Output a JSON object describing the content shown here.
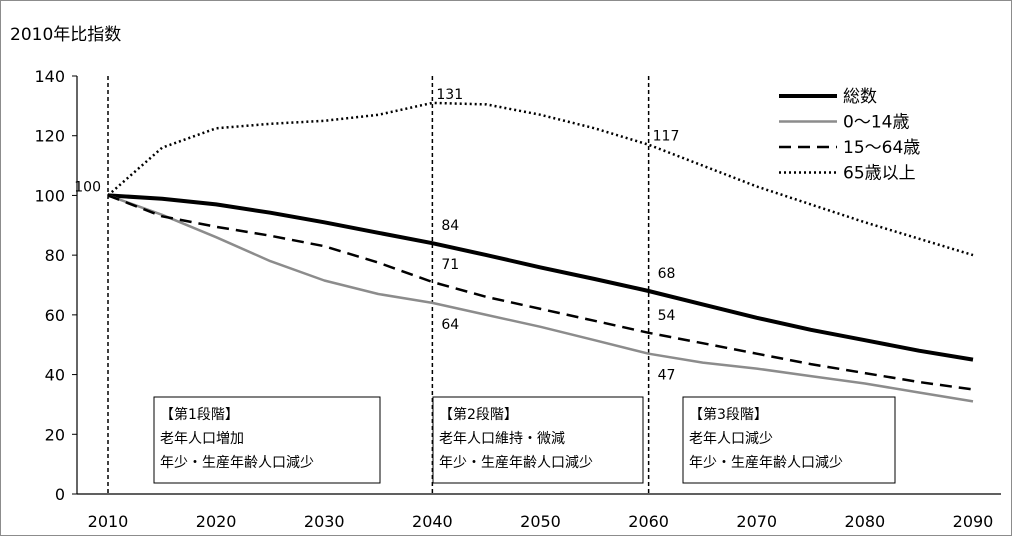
{
  "chart_data": {
    "type": "line",
    "ylabel": "2010年比指数",
    "xlabel": "",
    "title": "",
    "ylim": [
      0,
      140
    ],
    "xlim": [
      2010,
      2090
    ],
    "yticks": [
      0,
      20,
      40,
      60,
      80,
      100,
      120,
      140
    ],
    "xticks": [
      2010,
      2020,
      2030,
      2040,
      2050,
      2060,
      2070,
      2080,
      2090
    ],
    "grid": false,
    "legend_position": "top-right",
    "series": [
      {
        "name": "総数",
        "style": "solid",
        "color": "#000000",
        "x": [
          2010,
          2015,
          2020,
          2025,
          2030,
          2035,
          2040,
          2045,
          2050,
          2055,
          2060,
          2065,
          2070,
          2075,
          2080,
          2085,
          2090
        ],
        "values": [
          100,
          98.9,
          97,
          94.2,
          91,
          87.5,
          84,
          80,
          75.9,
          72,
          68,
          63.5,
          59,
          55,
          51.5,
          48,
          45
        ]
      },
      {
        "name": "0〜14歳",
        "style": "solid",
        "color": "#8c8c8c",
        "x": [
          2010,
          2015,
          2020,
          2025,
          2030,
          2035,
          2040,
          2045,
          2050,
          2055,
          2060,
          2065,
          2070,
          2075,
          2080,
          2085,
          2090
        ],
        "values": [
          100,
          93.5,
          86,
          78,
          71.5,
          67,
          64,
          60,
          56,
          51.5,
          47,
          44,
          42,
          39.5,
          37,
          34,
          31
        ]
      },
      {
        "name": "15〜64歳",
        "style": "dashed",
        "color": "#000000",
        "x": [
          2010,
          2015,
          2020,
          2025,
          2030,
          2035,
          2040,
          2045,
          2050,
          2055,
          2060,
          2065,
          2070,
          2075,
          2080,
          2085,
          2090
        ],
        "values": [
          100,
          93,
          89.5,
          86.5,
          83,
          77.5,
          71,
          66,
          62,
          58,
          54,
          50.5,
          47,
          43.5,
          40.5,
          37.5,
          35
        ]
      },
      {
        "name": "65歳以上",
        "style": "dotted",
        "color": "#000000",
        "x": [
          2010,
          2015,
          2020,
          2025,
          2030,
          2035,
          2040,
          2045,
          2050,
          2055,
          2060,
          2065,
          2070,
          2075,
          2080,
          2085,
          2090
        ],
        "values": [
          100,
          116,
          122.5,
          124,
          125,
          127,
          131,
          130.5,
          127,
          122.5,
          117,
          110,
          103,
          97,
          91,
          85.5,
          80
        ]
      }
    ],
    "vlines": [
      2010,
      2040,
      2060
    ],
    "annotations": [
      {
        "x": 2010,
        "y": 100,
        "text": "100",
        "pos": "left"
      },
      {
        "x": 2040,
        "y": 131,
        "text": "131",
        "pos": "right"
      },
      {
        "x": 2060,
        "y": 117,
        "text": "117",
        "pos": "right"
      },
      {
        "x": 2040,
        "y": 84,
        "text": "84",
        "pos": "above-right"
      },
      {
        "x": 2040,
        "y": 71,
        "text": "71",
        "pos": "above-right"
      },
      {
        "x": 2040,
        "y": 64,
        "text": "64",
        "pos": "below-right"
      },
      {
        "x": 2060,
        "y": 68,
        "text": "68",
        "pos": "above-right"
      },
      {
        "x": 2060,
        "y": 54,
        "text": "54",
        "pos": "above-right"
      },
      {
        "x": 2060,
        "y": 47,
        "text": "47",
        "pos": "below-right"
      }
    ],
    "stage_boxes": [
      {
        "lines": [
          "【第1段階】",
          "老年人口増加",
          "年少・生産年齢人口減少"
        ]
      },
      {
        "lines": [
          "【第2段階】",
          "老年人口維持・微減",
          "年少・生産年齢人口減少"
        ]
      },
      {
        "lines": [
          "【第3段階】",
          "老年人口減少",
          "年少・生産年齢人口減少"
        ]
      }
    ]
  }
}
